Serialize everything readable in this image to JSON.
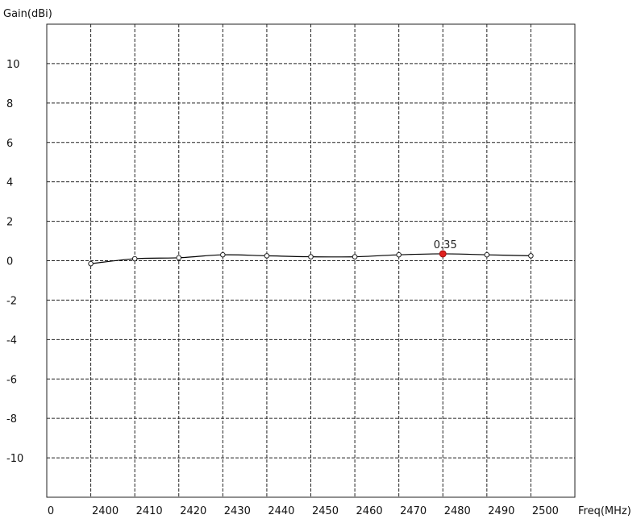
{
  "chart_data": {
    "type": "line",
    "ylabel": "Gain(dBi)",
    "xlabel": "Freq(MHz)",
    "xlim": [
      2390,
      2510
    ],
    "ylim": [
      -12,
      12
    ],
    "x_origin_label": "0",
    "x_ticks": [
      2400,
      2410,
      2420,
      2430,
      2440,
      2450,
      2460,
      2470,
      2480,
      2490,
      2500
    ],
    "x_tick_labels": [
      "2400",
      "2410",
      "2420",
      "2430",
      "2440",
      "2450",
      "2460",
      "2470",
      "2480",
      "2490",
      "2500"
    ],
    "y_ticks": [
      10,
      8,
      6,
      4,
      2,
      0,
      -2,
      -4,
      -6,
      -8,
      -10
    ],
    "y_tick_labels": [
      "10",
      "8",
      "6",
      "4",
      "2",
      "0",
      "-2",
      "-4",
      "-6",
      "-8",
      "-10"
    ],
    "grid": true,
    "series": [
      {
        "x": [
          2400,
          2410,
          2420,
          2430,
          2440,
          2450,
          2460,
          2470,
          2480,
          2490,
          2500
        ],
        "y": [
          -0.15,
          0.1,
          0.15,
          0.3,
          0.25,
          0.2,
          0.2,
          0.3,
          0.35,
          0.3,
          0.25
        ],
        "highlight_index": 8,
        "highlight_label": "0.35",
        "highlight_color": "#e0201e"
      }
    ]
  }
}
